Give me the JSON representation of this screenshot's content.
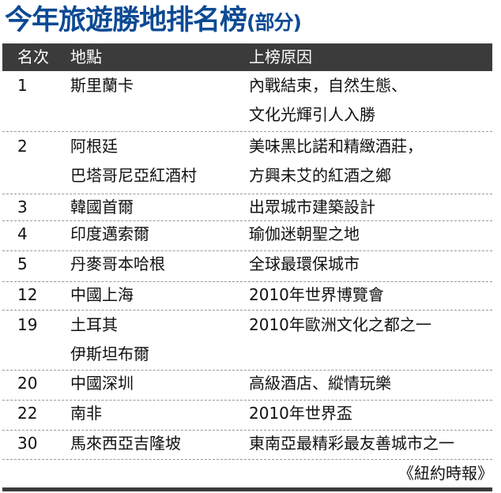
{
  "title": {
    "main": "今年旅遊勝地排名榜",
    "sub": "(部分)"
  },
  "colors": {
    "title": "#0d4a94",
    "header_bg": "#3b3b3b"
  },
  "columns": {
    "rank": "名次",
    "place": "地點",
    "reason": "上榜原因"
  },
  "rows": [
    {
      "rank": "1",
      "place": [
        "斯里蘭卡"
      ],
      "reason": [
        "內戰結束，自然生態、",
        "文化光輝引人入勝"
      ]
    },
    {
      "rank": "2",
      "place": [
        "阿根廷",
        "巴塔哥尼亞紅酒村"
      ],
      "reason": [
        "美味黑比諾和精緻酒莊，",
        "方興未艾的紅酒之鄉"
      ]
    },
    {
      "rank": "3",
      "place": [
        "韓國首爾"
      ],
      "reason": [
        "出眾城市建築設計"
      ]
    },
    {
      "rank": "4",
      "place": [
        "印度邁索爾"
      ],
      "reason": [
        "瑜伽迷朝聖之地"
      ]
    },
    {
      "rank": "5",
      "place": [
        "丹麥哥本哈根"
      ],
      "reason": [
        "全球最環保城市"
      ]
    },
    {
      "rank": "12",
      "place": [
        "中國上海"
      ],
      "reason": [
        "2010年世界博覽會"
      ]
    },
    {
      "rank": "19",
      "place": [
        "土耳其",
        "伊斯坦布爾"
      ],
      "reason": [
        "2010年歐洲文化之都之一"
      ]
    },
    {
      "rank": "20",
      "place": [
        "中國深圳"
      ],
      "reason": [
        "高級酒店、縱情玩樂"
      ]
    },
    {
      "rank": "22",
      "place": [
        "南非"
      ],
      "reason": [
        "2010年世界盃"
      ]
    },
    {
      "rank": "30",
      "place": [
        "馬來西亞吉隆坡"
      ],
      "reason": [
        "東南亞最精彩最友善城市之一"
      ]
    }
  ],
  "source": "《紐約時報》"
}
